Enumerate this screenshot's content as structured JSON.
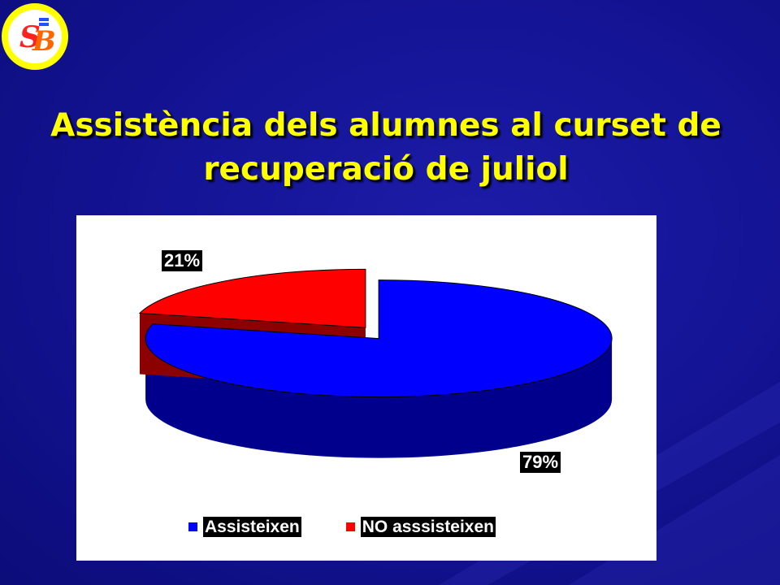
{
  "title_line1": "Assistència dels alumnes al curset de",
  "title_line2": "recuperació  de juliol",
  "colors": {
    "title": "#ffff00",
    "background": "#141496",
    "slice_assisteixen": "#0000ff",
    "slice_no": "#ff0000",
    "logo_ring": "#ffff00"
  },
  "chart_data": {
    "type": "pie",
    "style": "3d-exploded",
    "categories": [
      "Assisteixen",
      "NO asssisteixen"
    ],
    "values": [
      79,
      21
    ],
    "data_labels": [
      "79%",
      "21%"
    ],
    "legend": [
      "Assisteixen",
      "NO asssisteixen"
    ],
    "legend_position": "bottom"
  }
}
